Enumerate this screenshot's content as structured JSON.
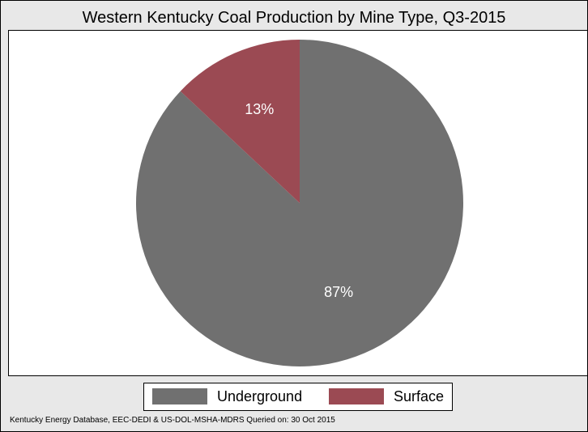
{
  "chart_data": {
    "type": "pie",
    "title": "Western Kentucky Coal Production by Mine Type, Q3-2015",
    "slices": [
      {
        "name": "Underground",
        "value": 87,
        "label": "87%",
        "color": "#707070"
      },
      {
        "name": "Surface",
        "value": 13,
        "label": "13%",
        "color": "#9b4a53"
      }
    ],
    "legend_position": "bottom"
  },
  "legend": {
    "items": [
      {
        "label": "Underground",
        "color": "#707070"
      },
      {
        "label": "Surface",
        "color": "#9b4a53"
      }
    ]
  },
  "source_note": "Kentucky Energy Database, EEC-DEDI & US-DOL-MSHA-MDRS Queried on: 30 Oct 2015"
}
